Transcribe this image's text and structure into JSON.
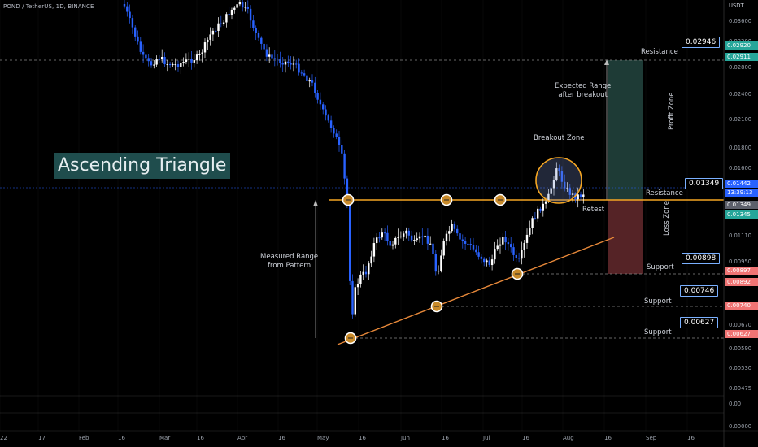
{
  "header": {
    "symbol": "POND / TetherUS, 1D, BINANCE"
  },
  "chart_data": {
    "type": "candlestick",
    "title": "Ascending Triangle",
    "y_unit": "USDT",
    "y_scale": "log",
    "ylim": [
      0.0,
      0.0362
    ],
    "y_ticks": [
      "0.03600",
      "0.03200",
      "0.02800",
      "0.02400",
      "0.02100",
      "0.01800",
      "0.01600",
      "0.01270",
      "0.01110",
      "0.00950",
      "0.00810",
      "0.00670",
      "0.00590",
      "0.00530",
      "0.00475",
      "0.00",
      "0.00000"
    ],
    "x_ticks": [
      "22",
      "17",
      "Feb",
      "16",
      "Mar",
      "16",
      "Apr",
      "16",
      "May",
      "16",
      "Jun",
      "16",
      "Jul",
      "16",
      "Aug",
      "16",
      "Sep",
      "16"
    ],
    "levels": [
      {
        "name": "Resistance",
        "value": "0.02946"
      },
      {
        "name": "Resistance",
        "value": "0.01349"
      },
      {
        "name": "Support",
        "value": "0.00898"
      },
      {
        "name": "Support",
        "value": "0.00746"
      },
      {
        "name": "Support",
        "value": "0.00627"
      }
    ],
    "price_pills": [
      {
        "value": "0.02920",
        "color": "#26a69a"
      },
      {
        "value": "0.02911",
        "color": "#26a69a"
      },
      {
        "value": "0.01442",
        "color": "#2962ff"
      },
      {
        "value": "13:39:13",
        "color": "#2962ff"
      },
      {
        "value": "0.01349",
        "color": "#5d606b"
      },
      {
        "value": "0.01345",
        "color": "#26a69a"
      },
      {
        "value": "0.00897",
        "color": "#f07474"
      },
      {
        "value": "0.00892",
        "color": "#f07474"
      },
      {
        "value": "0.00740",
        "color": "#f07474"
      },
      {
        "value": "0.00627",
        "color": "#f07474"
      }
    ],
    "annotations": {
      "expected": "Expected Range\nafter breakout",
      "breakout": "Breakout Zone",
      "retest": "Retest",
      "measured": "Measured Range\nfrom Pattern",
      "profit": "Profit Zone",
      "loss": "Loss Zone"
    },
    "colors": {
      "up": "#ffffff",
      "down": "#2962ff",
      "resistance_line": "#f5a623",
      "support_line": "#e8893a",
      "profit": "#1f3f3a",
      "loss": "#5a2327"
    }
  }
}
